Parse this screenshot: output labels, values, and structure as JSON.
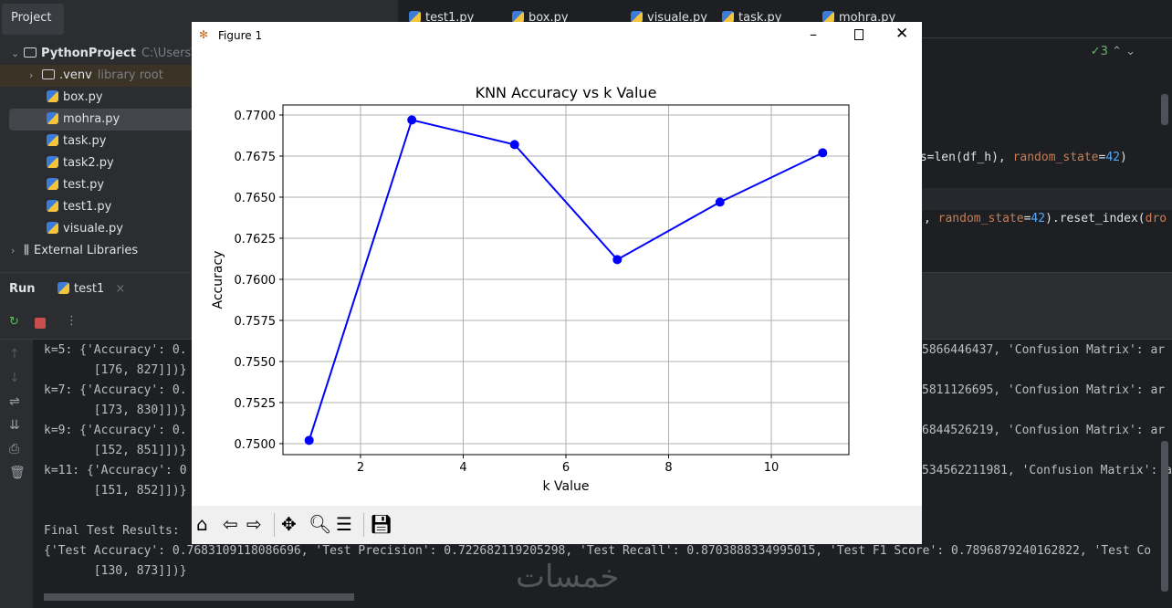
{
  "project_panel": {
    "tab": "Project",
    "root": {
      "name": "PythonProject",
      "path": "C:\\Users\\U"
    },
    "items": [
      {
        "name": ".venv",
        "note": "library root",
        "type": "folder"
      },
      {
        "name": "box.py"
      },
      {
        "name": "mohra.py",
        "selected": true
      },
      {
        "name": "task.py"
      },
      {
        "name": "task2.py"
      },
      {
        "name": "test.py"
      },
      {
        "name": "test1.py"
      },
      {
        "name": "visuale.py"
      },
      {
        "name": "External Libraries",
        "type": "library"
      }
    ]
  },
  "editor": {
    "tabs": [
      "test1.py",
      "box.py",
      "visuale.py",
      "task.py",
      "mohra.py"
    ],
    "inspection_count": "3",
    "code_lines": [
      {
        "a": "es=len(df_h), ",
        "b": "random_state",
        "c": "=",
        "d": "42",
        ")": ")"
      },
      {
        "a": ", ",
        "b": "random_state",
        "c": "=",
        "d": "42",
        "e": ").reset_index(",
        "f": "dro"
      }
    ]
  },
  "run": {
    "label": "Run",
    "tab": "test1",
    "lines": [
      "k=5: {'Accuracy': 0.",
      "       [176, 827]])}",
      "k=7: {'Accuracy': 0.",
      "       [173, 830]])}",
      "k=9: {'Accuracy': 0.",
      "       [152, 851]])}",
      "k=11: {'Accuracy': 0",
      "       [151, 852]])}",
      "",
      "Final Test Results:",
      "{'Test Accuracy': 0.7683109118086696, 'Test Precision': 0.722682119205298, 'Test Recall': 0.8703888334995015, 'Test F1 Score': 0.7896879240162822, 'Test Co",
      "       [130, 873]])}"
    ],
    "right_fragments": [
      "5866446437, 'Confusion Matrix': ar",
      "5811126695, 'Confusion Matrix': ar",
      "6844526219, 'Confusion Matrix': ar",
      "534562211981, 'Confusion Matrix': a"
    ]
  },
  "figure": {
    "window_title": "Figure 1"
  },
  "chart_data": {
    "type": "line",
    "title": "KNN Accuracy vs k Value",
    "xlabel": "k Value",
    "ylabel": "Accuracy",
    "x": [
      1,
      3,
      5,
      7,
      9,
      11
    ],
    "y": [
      0.7502,
      0.7697,
      0.7682,
      0.7612,
      0.7647,
      0.7677
    ],
    "xlim": [
      0.49,
      11.51
    ],
    "ylim": [
      0.74933,
      0.77061
    ],
    "xticks": [
      2,
      4,
      6,
      8,
      10
    ],
    "yticks": [
      0.75,
      0.7525,
      0.755,
      0.7575,
      0.76,
      0.7625,
      0.765,
      0.7675,
      0.77
    ],
    "ytick_labels": [
      "0.7500",
      "0.7525",
      "0.7550",
      "0.7575",
      "0.7600",
      "0.7625",
      "0.7650",
      "0.7675",
      "0.7700"
    ],
    "grid": true,
    "marker": "circle",
    "color": "#0000ff"
  },
  "watermark": "خمسات"
}
